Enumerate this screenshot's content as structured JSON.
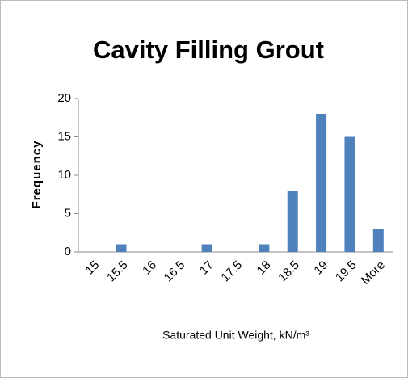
{
  "chart_data": {
    "type": "bar",
    "title": "Cavity Filling Grout",
    "x_label": "Saturated Unit Weight, kN/m³",
    "y_label": "Frequency",
    "categories": [
      "15",
      "15.5",
      "16",
      "16.5",
      "17",
      "17.5",
      "18",
      "18.5",
      "19",
      "19.5",
      "More"
    ],
    "values": [
      0,
      1,
      0,
      0,
      1,
      0,
      1,
      8,
      18,
      15,
      3
    ],
    "color": "#4f81bd",
    "ylim": [
      0,
      20
    ],
    "yticks": [
      0,
      5,
      10,
      15,
      20
    ],
    "grid": false
  }
}
